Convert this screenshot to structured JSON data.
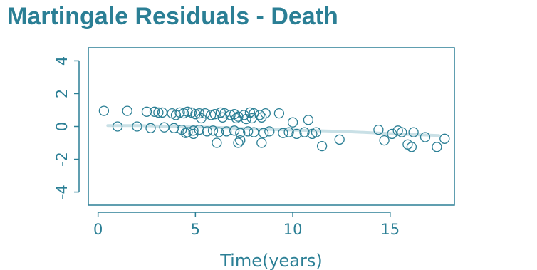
{
  "title": "Martingale Residuals - Death",
  "chart_data": {
    "type": "scatter",
    "title": "Martingale Residuals - Death",
    "xlabel": "Time(years)",
    "ylabel": "",
    "xlim": [
      -0.5,
      18.3
    ],
    "ylim": [
      -4.8,
      4.8
    ],
    "x_ticks": [
      0,
      5,
      10,
      15
    ],
    "x_tick_labels": [
      "0",
      "5",
      "10",
      "15"
    ],
    "y_ticks": [
      -4,
      -2,
      0,
      2,
      4
    ],
    "y_tick_labels": [
      "-4",
      "-2",
      "0",
      "2",
      "4"
    ],
    "grid": false,
    "colors": {
      "points": "#2b7f95",
      "smooth": "#c9e0e6",
      "axis": "#2b7f95"
    },
    "points": [
      [
        0.3,
        0.95
      ],
      [
        1.5,
        0.95
      ],
      [
        2.5,
        0.9
      ],
      [
        2.9,
        0.9
      ],
      [
        3.1,
        0.85
      ],
      [
        3.3,
        0.85
      ],
      [
        3.8,
        0.8
      ],
      [
        4.0,
        0.7
      ],
      [
        4.2,
        0.85
      ],
      [
        4.4,
        0.8
      ],
      [
        4.6,
        0.9
      ],
      [
        4.8,
        0.85
      ],
      [
        5.0,
        0.75
      ],
      [
        5.2,
        0.8
      ],
      [
        5.5,
        0.8
      ],
      [
        5.8,
        0.7
      ],
      [
        6.0,
        0.75
      ],
      [
        6.3,
        0.85
      ],
      [
        6.5,
        0.8
      ],
      [
        6.8,
        0.7
      ],
      [
        7.0,
        0.75
      ],
      [
        7.2,
        0.6
      ],
      [
        7.5,
        0.7
      ],
      [
        7.8,
        0.85
      ],
      [
        8.0,
        0.8
      ],
      [
        8.3,
        0.7
      ],
      [
        8.6,
        0.8
      ],
      [
        9.3,
        0.8
      ],
      [
        5.3,
        0.5
      ],
      [
        6.4,
        0.55
      ],
      [
        7.1,
        0.5
      ],
      [
        7.6,
        0.45
      ],
      [
        7.9,
        0.5
      ],
      [
        8.4,
        0.55
      ],
      [
        1.0,
        0.0
      ],
      [
        2.0,
        0.0
      ],
      [
        2.7,
        -0.1
      ],
      [
        3.4,
        -0.05
      ],
      [
        3.9,
        -0.1
      ],
      [
        4.3,
        -0.2
      ],
      [
        4.6,
        -0.35
      ],
      [
        4.9,
        -0.25
      ],
      [
        5.2,
        -0.2
      ],
      [
        5.6,
        -0.3
      ],
      [
        5.9,
        -0.25
      ],
      [
        6.2,
        -0.35
      ],
      [
        6.6,
        -0.3
      ],
      [
        7.0,
        -0.25
      ],
      [
        7.3,
        -0.4
      ],
      [
        7.7,
        -0.3
      ],
      [
        8.0,
        -0.35
      ],
      [
        8.5,
        -0.4
      ],
      [
        8.8,
        -0.3
      ],
      [
        4.5,
        -0.4
      ],
      [
        4.9,
        -0.45
      ],
      [
        6.1,
        -1.0
      ],
      [
        7.2,
        -1.0
      ],
      [
        7.3,
        -0.85
      ],
      [
        8.4,
        -1.0
      ],
      [
        9.5,
        -0.4
      ],
      [
        9.8,
        -0.35
      ],
      [
        10.0,
        0.25
      ],
      [
        10.2,
        -0.45
      ],
      [
        10.6,
        -0.35
      ],
      [
        10.8,
        0.4
      ],
      [
        11.0,
        -0.45
      ],
      [
        11.2,
        -0.35
      ],
      [
        11.5,
        -1.2
      ],
      [
        12.4,
        -0.8
      ],
      [
        14.4,
        -0.2
      ],
      [
        14.7,
        -0.85
      ],
      [
        15.1,
        -0.45
      ],
      [
        15.4,
        -0.25
      ],
      [
        15.6,
        -0.35
      ],
      [
        15.9,
        -1.1
      ],
      [
        16.1,
        -1.25
      ],
      [
        16.2,
        -0.35
      ],
      [
        16.8,
        -0.65
      ],
      [
        17.4,
        -1.25
      ],
      [
        17.8,
        -0.75
      ]
    ],
    "smooth_line": [
      [
        0.5,
        0.05
      ],
      [
        2,
        0.05
      ],
      [
        4,
        0.0
      ],
      [
        6,
        -0.05
      ],
      [
        8,
        -0.15
      ],
      [
        9.5,
        -0.2
      ],
      [
        11,
        -0.25
      ],
      [
        12.5,
        -0.3
      ],
      [
        14,
        -0.38
      ],
      [
        15.5,
        -0.46
      ],
      [
        17.5,
        -0.55
      ]
    ]
  }
}
